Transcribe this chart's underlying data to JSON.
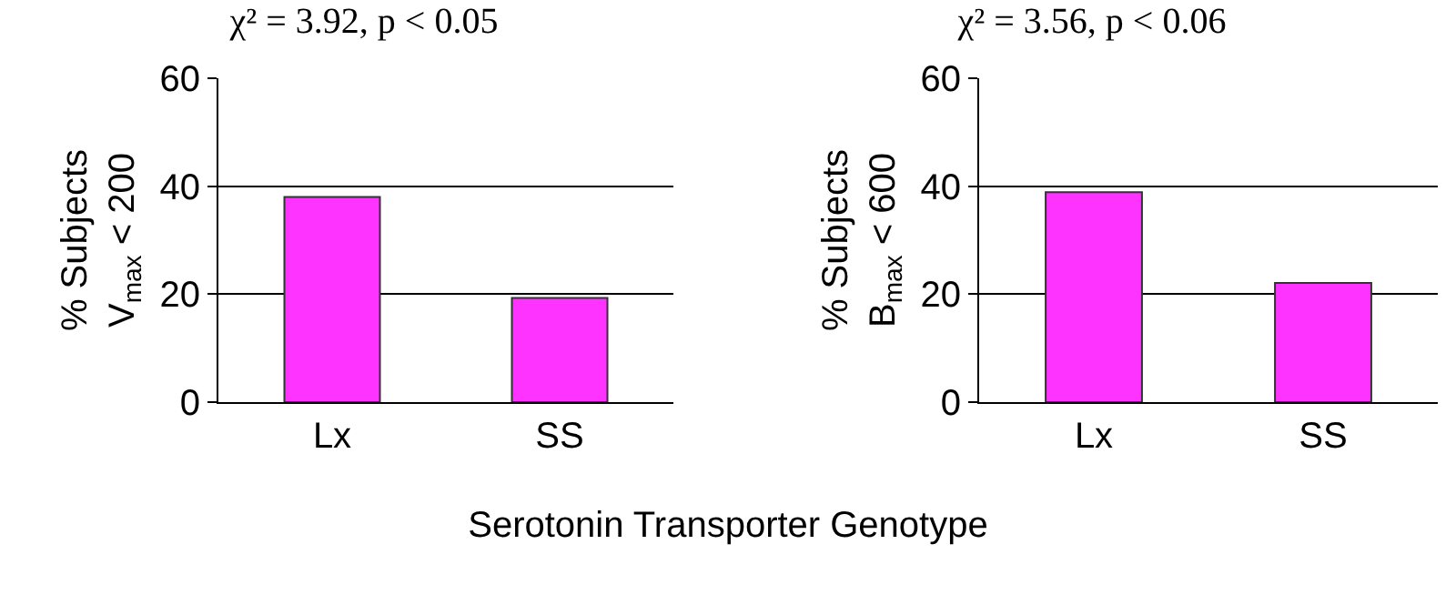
{
  "chart_data": [
    {
      "type": "bar",
      "title": "χ² = 3.92, p < 0.05",
      "ylabel": "% Subjects\nV$_{max}$ < 200",
      "xlabel": "Serotonin Transporter Genotype",
      "categories": [
        "Lx",
        "SS"
      ],
      "values": [
        38.0,
        19.3
      ],
      "color": "#ff33ff",
      "ylim": [
        0,
        60
      ],
      "yticks": [
        0,
        20,
        40,
        60
      ],
      "grid": "y",
      "legend": false
    },
    {
      "type": "bar",
      "title": "χ² = 3.56, p < 0.06",
      "ylabel": "% Subjects\nB$_{max}$ < 600",
      "categories": [
        "Lx",
        "SS"
      ],
      "values": [
        38.9,
        22.1
      ],
      "color": "#ff33ff",
      "ylim": [
        0,
        60
      ],
      "yticks": [
        0,
        20,
        40,
        60
      ],
      "grid": "y",
      "legend": false
    }
  ]
}
